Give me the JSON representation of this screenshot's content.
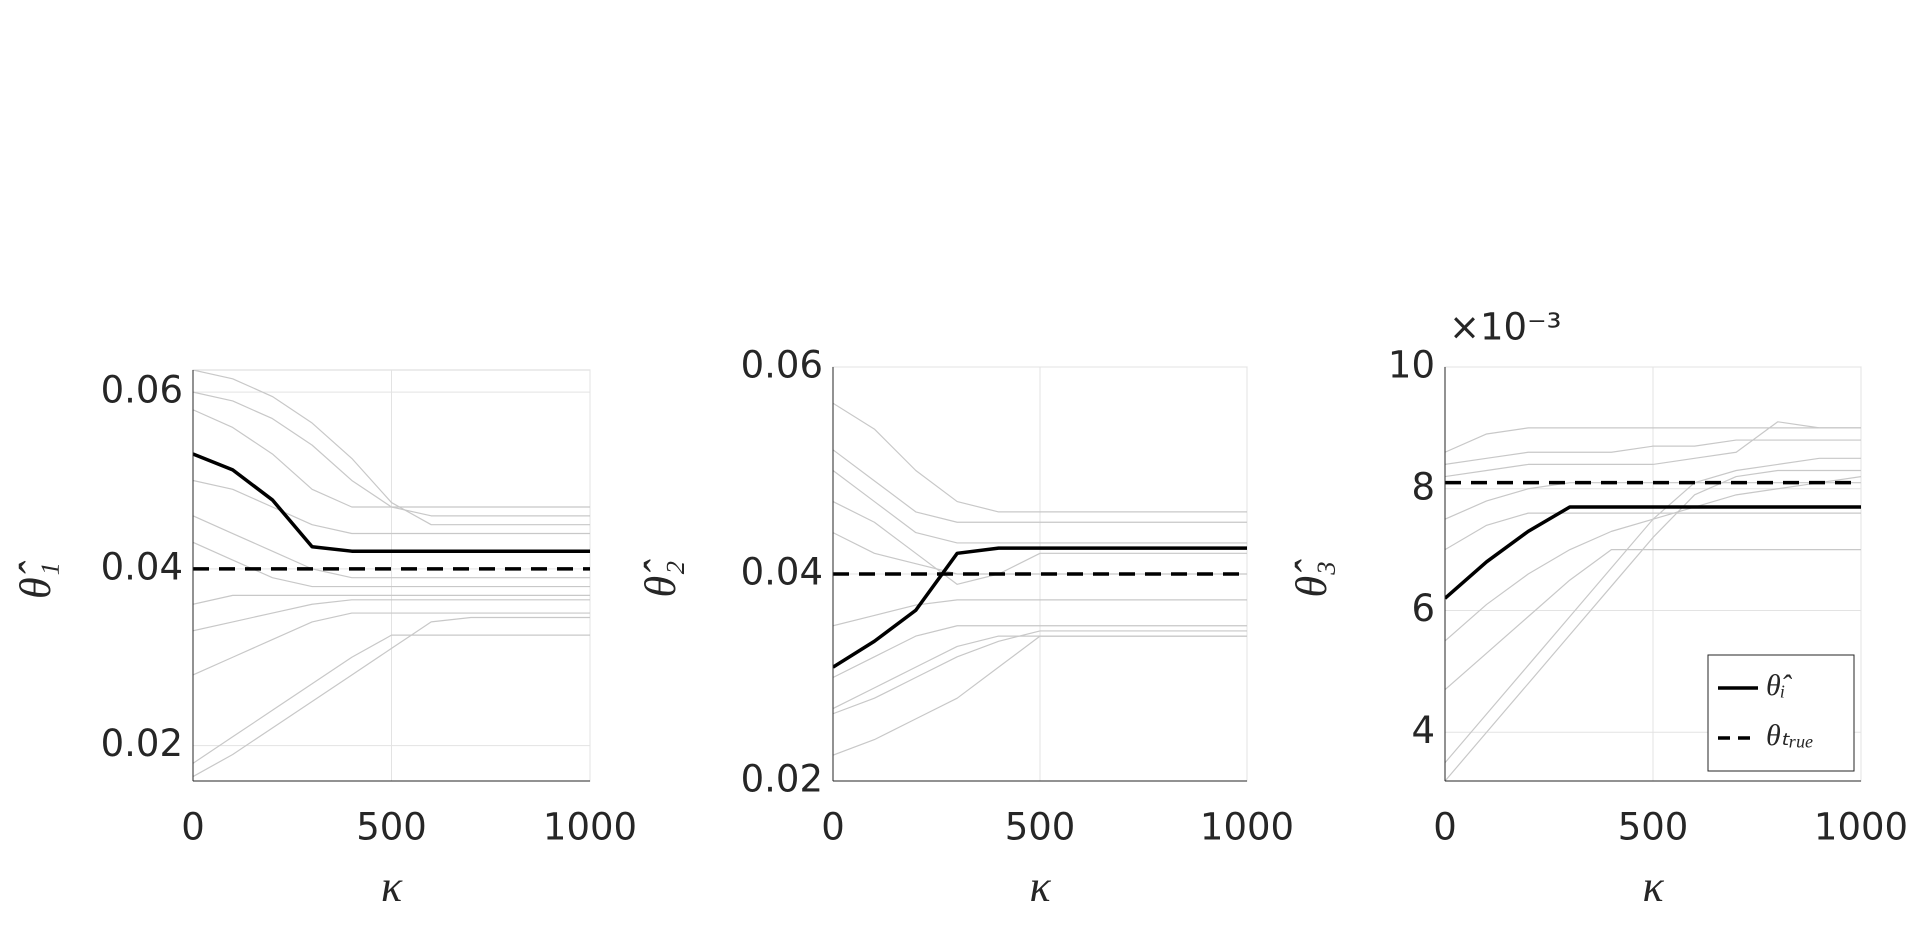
{
  "chart_data": [
    {
      "type": "line",
      "ylabel": "θ̂₁",
      "xlabel": "κ",
      "x": [
        0,
        100,
        200,
        300,
        400,
        500,
        600,
        700,
        800,
        900,
        1000
      ],
      "xlim": [
        0,
        1000
      ],
      "xticks": [
        0,
        500,
        1000
      ],
      "ylim": [
        0.016,
        0.0625
      ],
      "yticks": [
        0.02,
        0.04,
        0.06
      ],
      "grid": true,
      "series": [
        {
          "color": "#c8c8c8",
          "values": [
            0.0625,
            0.0615,
            0.0595,
            0.0565,
            0.0525,
            0.0475,
            0.045,
            0.045,
            0.045,
            0.045,
            0.045
          ]
        },
        {
          "color": "#c8c8c8",
          "values": [
            0.06,
            0.059,
            0.057,
            0.054,
            0.05,
            0.047,
            0.046,
            0.046,
            0.046,
            0.046,
            0.046
          ]
        },
        {
          "color": "#c8c8c8",
          "values": [
            0.058,
            0.056,
            0.053,
            0.049,
            0.047,
            0.047,
            0.047,
            0.047,
            0.047,
            0.047,
            0.047
          ]
        },
        {
          "color": "#c8c8c8",
          "values": [
            0.05,
            0.049,
            0.047,
            0.045,
            0.044,
            0.044,
            0.044,
            0.044,
            0.044,
            0.044,
            0.044
          ]
        },
        {
          "color": "#c8c8c8",
          "values": [
            0.046,
            0.044,
            0.042,
            0.04,
            0.039,
            0.039,
            0.039,
            0.039,
            0.039,
            0.039,
            0.039
          ]
        },
        {
          "color": "#c8c8c8",
          "values": [
            0.043,
            0.041,
            0.039,
            0.038,
            0.038,
            0.038,
            0.038,
            0.038,
            0.038,
            0.038,
            0.038
          ]
        },
        {
          "color": "#c8c8c8",
          "values": [
            0.036,
            0.037,
            0.037,
            0.037,
            0.037,
            0.037,
            0.037,
            0.037,
            0.037,
            0.037,
            0.037
          ]
        },
        {
          "color": "#c8c8c8",
          "values": [
            0.033,
            0.034,
            0.035,
            0.036,
            0.0365,
            0.0365,
            0.0365,
            0.0365,
            0.0365,
            0.0365,
            0.0365
          ]
        },
        {
          "color": "#c8c8c8",
          "values": [
            0.028,
            0.03,
            0.032,
            0.034,
            0.035,
            0.035,
            0.035,
            0.035,
            0.035,
            0.035,
            0.035
          ]
        },
        {
          "color": "#c8c8c8",
          "values": [
            0.018,
            0.021,
            0.024,
            0.027,
            0.03,
            0.0325,
            0.0325,
            0.0325,
            0.0325,
            0.0325,
            0.0325
          ]
        },
        {
          "color": "#c8c8c8",
          "values": [
            0.0165,
            0.019,
            0.022,
            0.025,
            0.028,
            0.031,
            0.034,
            0.0345,
            0.0345,
            0.0345,
            0.0345
          ]
        },
        {
          "color": "#000000",
          "linewidth": 3.5,
          "linestyle": "solid",
          "values": [
            0.053,
            0.0512,
            0.0478,
            0.0425,
            0.042,
            0.042,
            0.042,
            0.042,
            0.042,
            0.042,
            0.042
          ]
        },
        {
          "color": "#000000",
          "linewidth": 3.5,
          "linestyle": "dashed",
          "values": [
            0.04,
            0.04,
            0.04,
            0.04,
            0.04,
            0.04,
            0.04,
            0.04,
            0.04,
            0.04,
            0.04
          ]
        }
      ]
    },
    {
      "type": "line",
      "ylabel": "θ̂₂",
      "xlabel": "κ",
      "x": [
        0,
        100,
        200,
        300,
        400,
        500,
        600,
        700,
        800,
        900,
        1000
      ],
      "xlim": [
        0,
        1000
      ],
      "xticks": [
        0,
        500,
        1000
      ],
      "ylim": [
        0.02,
        0.06
      ],
      "yticks": [
        0.02,
        0.04,
        0.06
      ],
      "grid": true,
      "series": [
        {
          "color": "#c8c8c8",
          "values": [
            0.0565,
            0.054,
            0.05,
            0.047,
            0.046,
            0.046,
            0.046,
            0.046,
            0.046,
            0.046,
            0.046
          ]
        },
        {
          "color": "#c8c8c8",
          "values": [
            0.052,
            0.049,
            0.046,
            0.045,
            0.045,
            0.045,
            0.045,
            0.045,
            0.045,
            0.045,
            0.045
          ]
        },
        {
          "color": "#c8c8c8",
          "values": [
            0.05,
            0.047,
            0.044,
            0.043,
            0.043,
            0.043,
            0.043,
            0.043,
            0.043,
            0.043,
            0.043
          ]
        },
        {
          "color": "#c8c8c8",
          "values": [
            0.047,
            0.045,
            0.042,
            0.039,
            0.04,
            0.042,
            0.042,
            0.042,
            0.042,
            0.042,
            0.042
          ]
        },
        {
          "color": "#c8c8c8",
          "values": [
            0.044,
            0.042,
            0.041,
            0.04,
            0.04,
            0.04,
            0.04,
            0.04,
            0.04,
            0.04,
            0.04
          ]
        },
        {
          "color": "#c8c8c8",
          "values": [
            0.035,
            0.036,
            0.037,
            0.0375,
            0.0375,
            0.0375,
            0.0375,
            0.0375,
            0.0375,
            0.0375,
            0.0375
          ]
        },
        {
          "color": "#c8c8c8",
          "values": [
            0.03,
            0.032,
            0.034,
            0.035,
            0.035,
            0.035,
            0.035,
            0.035,
            0.035,
            0.035,
            0.035
          ]
        },
        {
          "color": "#c8c8c8",
          "values": [
            0.027,
            0.029,
            0.031,
            0.033,
            0.034,
            0.034,
            0.034,
            0.034,
            0.034,
            0.034,
            0.034
          ]
        },
        {
          "color": "#c8c8c8",
          "values": [
            0.0225,
            0.024,
            0.026,
            0.028,
            0.031,
            0.034,
            0.034,
            0.034,
            0.034,
            0.034,
            0.034
          ]
        },
        {
          "color": "#c8c8c8",
          "values": [
            0.0265,
            0.028,
            0.03,
            0.032,
            0.0335,
            0.0345,
            0.0345,
            0.0345,
            0.0345,
            0.0345,
            0.0345
          ]
        },
        {
          "color": "#000000",
          "linewidth": 3.5,
          "linestyle": "solid",
          "values": [
            0.031,
            0.0335,
            0.0365,
            0.042,
            0.0425,
            0.0425,
            0.0425,
            0.0425,
            0.0425,
            0.0425,
            0.0425
          ]
        },
        {
          "color": "#000000",
          "linewidth": 3.5,
          "linestyle": "dashed",
          "values": [
            0.04,
            0.04,
            0.04,
            0.04,
            0.04,
            0.04,
            0.04,
            0.04,
            0.04,
            0.04,
            0.04
          ]
        }
      ]
    },
    {
      "type": "line",
      "ylabel": "θ̂₃",
      "xlabel": "κ",
      "y_multiplier": "×10⁻³",
      "x": [
        0,
        100,
        200,
        300,
        400,
        500,
        600,
        700,
        800,
        900,
        1000
      ],
      "xlim": [
        0,
        1000
      ],
      "xticks": [
        0,
        500,
        1000
      ],
      "ylim": [
        3.2,
        10
      ],
      "yticks": [
        4,
        6,
        8,
        10
      ],
      "grid": true,
      "legend": "lower right",
      "series": [
        {
          "color": "#c8c8c8",
          "values": [
            8.6,
            8.9,
            9.0,
            9.0,
            9.0,
            9.0,
            9.0,
            9.0,
            9.0,
            9.0,
            9.0
          ]
        },
        {
          "color": "#c8c8c8",
          "values": [
            8.4,
            8.5,
            8.6,
            8.6,
            8.6,
            8.7,
            8.7,
            8.8,
            8.8,
            8.8,
            8.8
          ]
        },
        {
          "color": "#c8c8c8",
          "values": [
            8.2,
            8.3,
            8.4,
            8.4,
            8.4,
            8.4,
            8.5,
            8.6,
            9.1,
            9.0,
            9.0
          ]
        },
        {
          "color": "#c8c8c8",
          "values": [
            7.5,
            7.8,
            8.0,
            8.1,
            8.1,
            8.1,
            8.1,
            8.1,
            8.1,
            8.1,
            8.1
          ]
        },
        {
          "color": "#c8c8c8",
          "values": [
            7.0,
            7.4,
            7.6,
            7.6,
            7.6,
            7.6,
            7.6,
            7.6,
            7.6,
            7.6,
            7.6
          ]
        },
        {
          "color": "#c8c8c8",
          "values": [
            5.5,
            6.1,
            6.6,
            7.0,
            7.3,
            7.5,
            7.7,
            7.9,
            8.0,
            8.1,
            8.2
          ]
        },
        {
          "color": "#c8c8c8",
          "values": [
            4.7,
            5.3,
            5.9,
            6.5,
            7.0,
            7.0,
            7.0,
            7.0,
            7.0,
            7.0,
            7.0
          ]
        },
        {
          "color": "#c8c8c8",
          "values": [
            3.5,
            4.3,
            5.1,
            5.9,
            6.7,
            7.5,
            8.1,
            8.3,
            8.4,
            8.5,
            8.5
          ]
        },
        {
          "color": "#c8c8c8",
          "values": [
            3.2,
            4.0,
            4.8,
            5.6,
            6.4,
            7.2,
            7.9,
            8.2,
            8.3,
            8.3,
            8.3
          ]
        },
        {
          "name": "θ̂ᵢ",
          "color": "#000000",
          "linewidth": 3.5,
          "linestyle": "solid",
          "values": [
            6.2,
            6.8,
            7.3,
            7.7,
            7.7,
            7.7,
            7.7,
            7.7,
            7.7,
            7.7,
            7.7
          ]
        },
        {
          "name": "θₜᵣᵤₑ",
          "color": "#000000",
          "linewidth": 3.5,
          "linestyle": "dashed",
          "values": [
            8.1,
            8.1,
            8.1,
            8.1,
            8.1,
            8.1,
            8.1,
            8.1,
            8.1,
            8.1,
            8.1
          ]
        }
      ]
    }
  ]
}
